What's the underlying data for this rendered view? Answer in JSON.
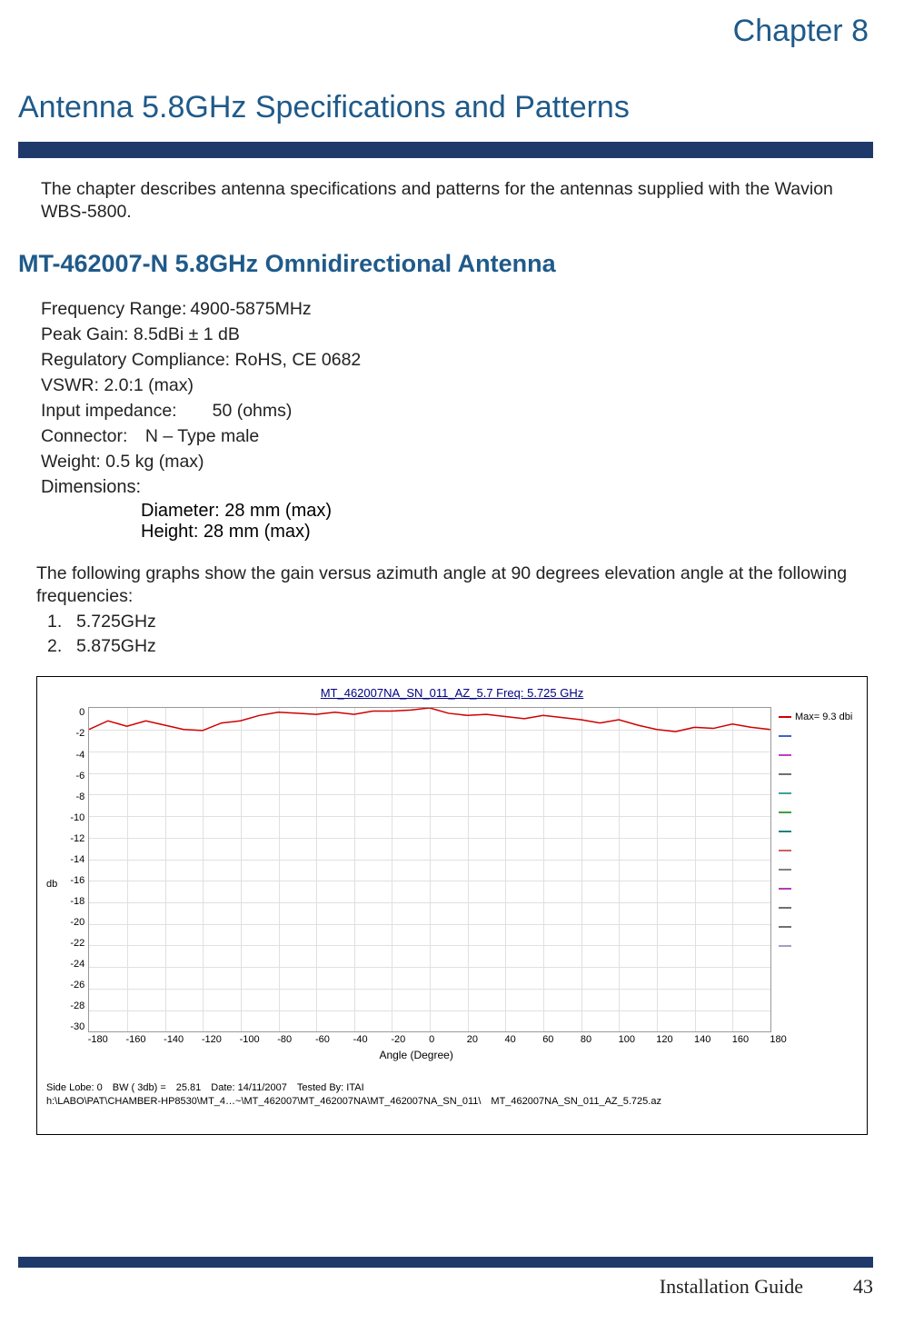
{
  "chapter_label": "Chapter 8",
  "main_title": "Antenna 5.8GHz Specifications and Patterns",
  "intro": "The chapter describes antenna specifications and patterns for the antennas supplied with the Wavion WBS-5800.",
  "section_heading": "MT-462007-N 5.8GHz Omnidirectional Antenna",
  "specs": {
    "freq": "Frequency Range: 4900-5875MHz",
    "gain": "Peak Gain: 8.5dBi ± 1 dB",
    "regulatory": "Regulatory Compliance: RoHS, CE 0682",
    "vswr": "VSWR: 2.0:1 (max)",
    "impedance": "Input impedance:  50 (ohms)",
    "connector": "Connector: N – Type male",
    "weight": "Weight: 0.5 kg (max)",
    "dimensions_label": "Dimensions:",
    "diameter": "Diameter: 28 mm (max)",
    "height": "Height: 28 mm (max)"
  },
  "graph_intro": "The following graphs show the gain versus azimuth angle at 90 degrees elevation angle at the following frequencies:",
  "freq_list": [
    {
      "num": "1.",
      "val": "5.725GHz"
    },
    {
      "num": "2.",
      "val": "5.875GHz"
    }
  ],
  "chart": {
    "title": "MT_462007NA_SN_011_AZ_5.7  Freq: 5.725 GHz",
    "y_label": "db",
    "x_label": "Angle (Degree)",
    "y_ticks": [
      "0",
      "-2",
      "-4",
      "-6",
      "-8",
      "-10",
      "-12",
      "-14",
      "-16",
      "-18",
      "-20",
      "-22",
      "-24",
      "-26",
      "-28",
      "-30"
    ],
    "x_ticks": [
      "-180",
      "-160",
      "-140",
      "-120",
      "-100",
      "-80",
      "-60",
      "-40",
      "-20",
      "0",
      "20",
      "40",
      "60",
      "80",
      "100",
      "120",
      "140",
      "160",
      "180"
    ],
    "ylim": [
      -30,
      0
    ],
    "xlim": [
      -180,
      180
    ],
    "background_color": "#ffffff",
    "grid_color": "#e0e0e0",
    "trace": {
      "color": "#d00000",
      "width": 1.5,
      "data_x": [
        -180,
        -170,
        -160,
        -150,
        -140,
        -130,
        -120,
        -110,
        -100,
        -90,
        -80,
        -70,
        -60,
        -50,
        -40,
        -30,
        -20,
        -10,
        0,
        10,
        20,
        30,
        40,
        50,
        60,
        70,
        80,
        90,
        100,
        110,
        120,
        130,
        140,
        150,
        160,
        170,
        180
      ],
      "data_y": [
        -2.0,
        -1.2,
        -1.7,
        -1.2,
        -1.6,
        -2.0,
        -2.1,
        -1.4,
        -1.2,
        -0.7,
        -0.4,
        -0.5,
        -0.6,
        -0.4,
        -0.6,
        -0.3,
        -0.3,
        -0.2,
        0.0,
        -0.5,
        -0.7,
        -0.6,
        -0.8,
        -1.0,
        -0.7,
        -0.9,
        -1.1,
        -1.4,
        -1.1,
        -1.6,
        -2.0,
        -2.2,
        -1.8,
        -1.9,
        -1.5,
        -1.8,
        -2.0
      ]
    },
    "legend": {
      "main": "Max= 9.3 dbi",
      "colors": [
        "#d00000",
        "#4060d0",
        "#c040c0",
        "#707070",
        "#40a0a0",
        "#40a040",
        "#208080",
        "#d06060",
        "#808080",
        "#b040b0",
        "#707070",
        "#707070",
        "#a0a0c0"
      ]
    },
    "footer1": "Side Lobe: 0 BW ( 3db) = 25.81 Date: 14/11/2007 Tested By: ITAI",
    "footer2": "h:\\LABO\\PAT\\CHAMBER-HP8530\\MT_4…~\\MT_462007\\MT_462007NA\\MT_462007NA_SN_011\\ MT_462007NA_SN_011_AZ_5.725.az"
  },
  "footer": {
    "guide": "Installation Guide",
    "page": "43",
    "rule_color": "#1f3a6a"
  },
  "colors": {
    "heading": "#1f5a8a",
    "rule": "#1f3a6a",
    "chart_title": "#000080"
  }
}
